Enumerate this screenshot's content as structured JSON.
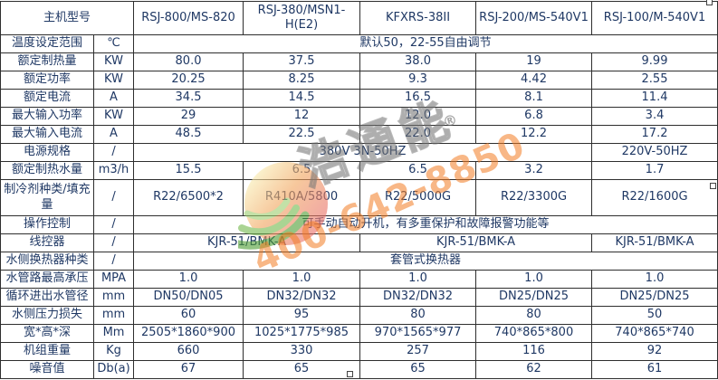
{
  "table": {
    "header": {
      "model_label": "主机型号",
      "models": [
        "RSJ-800/MS-820",
        "RSJ-380/MSN1-H(E2)",
        "KFXRS-38II",
        "RSJ-200/MS-540V1",
        "RSJ-100/M-540V1"
      ]
    },
    "rows": [
      {
        "label": "温度设定范围",
        "unit": "℃",
        "cells": [
          {
            "text": "默认50，22-55自由调节",
            "span": 5
          }
        ]
      },
      {
        "label": "额定制热量",
        "unit": "KW",
        "cells": [
          {
            "text": "80.0",
            "span": 1
          },
          {
            "text": "37.5",
            "span": 1
          },
          {
            "text": "38.0",
            "span": 1
          },
          {
            "text": "19",
            "span": 1
          },
          {
            "text": "9.99",
            "span": 1
          }
        ]
      },
      {
        "label": "额定功率",
        "unit": "KW",
        "cells": [
          {
            "text": "20.25",
            "span": 1
          },
          {
            "text": "8.25",
            "span": 1
          },
          {
            "text": "9.3",
            "span": 1
          },
          {
            "text": "4.42",
            "span": 1
          },
          {
            "text": "2.55",
            "span": 1
          }
        ]
      },
      {
        "label": "额定电流",
        "unit": "A",
        "cells": [
          {
            "text": "34.5",
            "span": 1
          },
          {
            "text": "14.5",
            "span": 1
          },
          {
            "text": "16.5",
            "span": 1
          },
          {
            "text": "8.1",
            "span": 1
          },
          {
            "text": "11.4",
            "span": 1
          }
        ]
      },
      {
        "label": "最大输入功率",
        "unit": "KW",
        "cells": [
          {
            "text": "29",
            "span": 1
          },
          {
            "text": "12",
            "span": 1
          },
          {
            "text": "12.0",
            "span": 1
          },
          {
            "text": "6.8",
            "span": 1
          },
          {
            "text": "3.4",
            "span": 1
          }
        ]
      },
      {
        "label": "最大输入电流",
        "unit": "A",
        "cells": [
          {
            "text": "48.5",
            "span": 1
          },
          {
            "text": "22.5",
            "span": 1
          },
          {
            "text": "22.0",
            "span": 1
          },
          {
            "text": "12.2",
            "span": 1
          },
          {
            "text": "17.2",
            "span": 1
          }
        ]
      },
      {
        "label": "电源规格",
        "unit": "/",
        "cells": [
          {
            "text": "380V 3N-50HZ",
            "span": 4
          },
          {
            "text": "220V-50HZ",
            "span": 1
          }
        ]
      },
      {
        "label": "额定制热水量",
        "unit": "m3/h",
        "cells": [
          {
            "text": "15.5",
            "span": 1
          },
          {
            "text": "6.5",
            "span": 1
          },
          {
            "text": "6.5",
            "span": 1
          },
          {
            "text": "3.2",
            "span": 1
          },
          {
            "text": "1.7",
            "span": 1
          }
        ]
      },
      {
        "label": "制冷剂种类/填充量",
        "unit": "/",
        "tall": true,
        "cells": [
          {
            "text": "R22/6500*2",
            "span": 1
          },
          {
            "text": "R410A/5800",
            "span": 1
          },
          {
            "text": "R22/5000G",
            "span": 1
          },
          {
            "text": "R22/3300G",
            "span": 1
          },
          {
            "text": "R22/1600G",
            "span": 1
          }
        ]
      },
      {
        "label": "操作控制",
        "unit": "/",
        "cells": [
          {
            "text": "可手动自动开机，有多重保护和故障报警功能等",
            "span": 5
          }
        ]
      },
      {
        "label": "线控器",
        "unit": "/",
        "cells": [
          {
            "text": "KJR-51/BMK-A",
            "span": 2
          },
          {
            "text": "KJR-51/BMK-A",
            "span": 2
          },
          {
            "text": "KJR-51/BMK-A",
            "span": 1
          }
        ]
      },
      {
        "label": "水侧换热器种类",
        "unit": "/",
        "cells": [
          {
            "text": "套管式换热器",
            "span": 5
          }
        ]
      },
      {
        "label": "水管路最高承压",
        "unit": "MPA",
        "cells": [
          {
            "text": "1.0",
            "span": 1
          },
          {
            "text": "1.0",
            "span": 1
          },
          {
            "text": "1.0",
            "span": 1
          },
          {
            "text": "1.0",
            "span": 1
          },
          {
            "text": "1.0",
            "span": 1
          }
        ]
      },
      {
        "label": "循环进出水管径",
        "unit": "mm",
        "cells": [
          {
            "text": "DN50/DN05",
            "span": 1
          },
          {
            "text": "DN32/DN32",
            "span": 1
          },
          {
            "text": "DN32/DN32",
            "span": 1
          },
          {
            "text": "DN25/DN25",
            "span": 1
          },
          {
            "text": "DN25/DN25",
            "span": 1
          }
        ]
      },
      {
        "label": "水侧压力损失",
        "unit": "mm",
        "cells": [
          {
            "text": "60",
            "span": 1
          },
          {
            "text": "95",
            "span": 1
          },
          {
            "text": "80",
            "span": 1
          },
          {
            "text": "80",
            "span": 1
          },
          {
            "text": "50",
            "span": 1
          }
        ]
      },
      {
        "label": "宽*高*深",
        "unit": "Mm",
        "cells": [
          {
            "text": "2505*1860*900",
            "span": 1
          },
          {
            "text": "1025*1775*985",
            "span": 1
          },
          {
            "text": "970*1565*977",
            "span": 1
          },
          {
            "text": "740*865*800",
            "span": 1
          },
          {
            "text": "740*865*740",
            "span": 1
          }
        ]
      },
      {
        "label": "机组重量",
        "unit": "Kg",
        "cells": [
          {
            "text": "660",
            "span": 1
          },
          {
            "text": "330",
            "span": 1
          },
          {
            "text": "257",
            "span": 1
          },
          {
            "text": "116",
            "span": 1
          },
          {
            "text": "92",
            "span": 1
          }
        ]
      },
      {
        "label": "噪音值",
        "unit": "Db(a)",
        "cells": [
          {
            "text": "67",
            "span": 1
          },
          {
            "text": "65",
            "span": 1
          },
          {
            "text": "65",
            "span": 1
          },
          {
            "text": "62",
            "span": 1
          },
          {
            "text": "61",
            "span": 1
          }
        ]
      }
    ]
  },
  "watermark": {
    "brand": "浩通能",
    "registered": "®",
    "phone": "400-642-8850"
  },
  "colors": {
    "table_text": "#1f3864",
    "table_border": "#2e2e2e",
    "phone_orange": "#f27c22",
    "brand_gray": "#808080",
    "logo_warm": [
      "#f9edb0",
      "#f2a45c",
      "#e86a68"
    ],
    "logo_green": [
      "#4e9e33",
      "#73b94d",
      "#9cce6e"
    ]
  }
}
